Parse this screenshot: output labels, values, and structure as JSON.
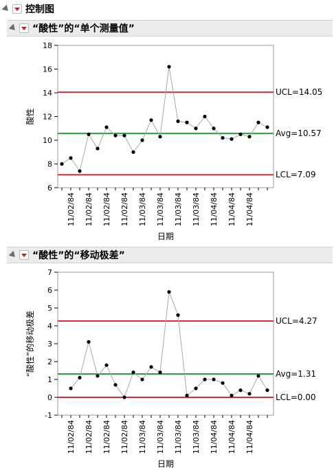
{
  "outline": {
    "title": "控制图"
  },
  "charts": [
    {
      "panel_title": "“酸性”的“单个测量值”",
      "chart_data": {
        "type": "line",
        "ylabel": "酸性",
        "xlabel": "日期",
        "ylim": [
          6,
          18
        ],
        "yticks": [
          6,
          8,
          10,
          12,
          14,
          16,
          18
        ],
        "x_tick_labels": [
          "11/02/84",
          "11/02/84",
          "11/02/84",
          "11/02/84",
          "11/03/84",
          "11/03/84",
          "11/03/84",
          "11/03/84",
          "11/04/84",
          "11/04/84",
          "11/04/84"
        ],
        "values": [
          8.0,
          8.5,
          7.4,
          10.5,
          9.3,
          11.1,
          10.4,
          10.4,
          9.0,
          10.0,
          11.7,
          10.3,
          16.2,
          11.6,
          11.5,
          11.0,
          12.0,
          11.0,
          10.2,
          10.1,
          10.5,
          10.3,
          11.5,
          11.1
        ],
        "ucl": 14.05,
        "avg": 10.57,
        "lcl": 7.09,
        "ucl_label": "UCL=14.05",
        "avg_label": "Avg=10.57",
        "lcl_label": "LCL=7.09",
        "colors": {
          "limit": "#e0283a",
          "center": "#22a33a",
          "line": "#a8a8a8",
          "point": "#000000"
        }
      }
    },
    {
      "panel_title": "“酸性”的“移动极差”",
      "chart_data": {
        "type": "line",
        "ylabel": "“酸性”的移动极差",
        "xlabel": "日期",
        "ylim": [
          -1,
          7
        ],
        "yticks": [
          -1,
          0,
          1,
          2,
          3,
          4,
          5,
          6,
          7
        ],
        "x_tick_labels": [
          "11/02/84",
          "11/02/84",
          "11/02/84",
          "11/02/84",
          "11/03/84",
          "11/03/84",
          "11/03/84",
          "11/03/84",
          "11/04/84",
          "11/04/84",
          "11/04/84"
        ],
        "values": [
          null,
          0.5,
          1.1,
          3.1,
          1.2,
          1.8,
          0.7,
          0.0,
          1.4,
          1.0,
          1.7,
          1.4,
          5.9,
          4.6,
          0.1,
          0.5,
          1.0,
          1.0,
          0.8,
          0.1,
          0.4,
          0.2,
          1.2,
          0.4
        ],
        "ucl": 4.27,
        "avg": 1.31,
        "lcl": 0.0,
        "ucl_label": "UCL=4.27",
        "avg_label": "Avg=1.31",
        "lcl_label": "LCL=0.00",
        "colors": {
          "limit": "#e0283a",
          "center": "#22a33a",
          "line": "#a8a8a8",
          "point": "#000000"
        }
      }
    }
  ]
}
